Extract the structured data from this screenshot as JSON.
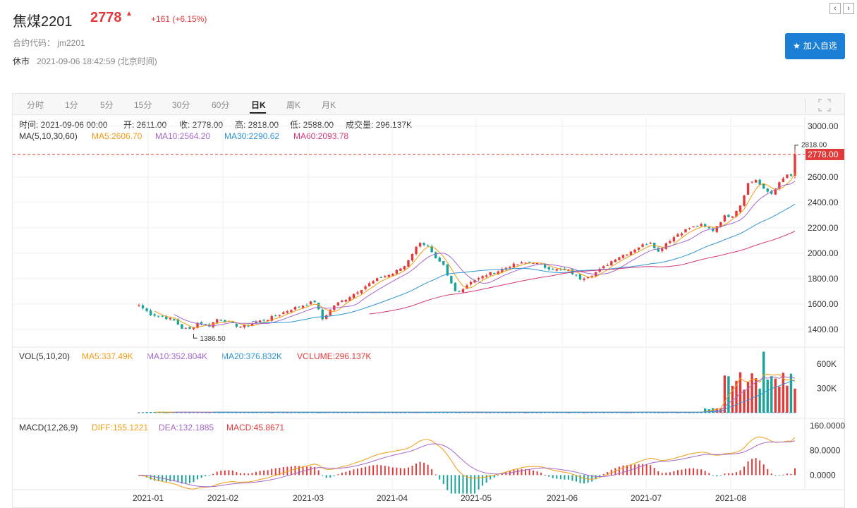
{
  "header": {
    "title": "焦煤2201",
    "price": "2778",
    "change": "+161 (+6.15%)",
    "code_label": "合约代码： jm2201",
    "status": "休市",
    "timestamp": "2021-09-06 18:42:59 (北京时间)",
    "watch_button": "加入自选",
    "up_color": "#e03a3a",
    "down_color": "#1aa39a"
  },
  "tabs": [
    {
      "label": "分时"
    },
    {
      "label": "1分"
    },
    {
      "label": "5分"
    },
    {
      "label": "15分"
    },
    {
      "label": "30分"
    },
    {
      "label": "60分"
    },
    {
      "label": "日K",
      "active": true
    },
    {
      "label": "周K"
    },
    {
      "label": "月K"
    }
  ],
  "info": {
    "time": "时间: 2021-09-06 00:00",
    "open": "开: 2611.00",
    "close": "收: 2778.00",
    "high": "高: 2818.00",
    "low": "低: 2588.00",
    "volume": "成交量: 296.137K"
  },
  "ma_legend": {
    "label": "MA(5,10,30,60)",
    "ma5": "MA5:2606.70",
    "ma10": "MA10:2564.20",
    "ma30": "MA30:2290.62",
    "ma60": "MA60:2093.78"
  },
  "vol_legend": {
    "label": "VOL(5,10,20)",
    "ma5": "MA5:337.49K",
    "ma10": "MA10:352.804K",
    "ma20": "MA20:376.832K",
    "volume": "VOLUME:296.137K"
  },
  "macd_legend": {
    "label": "MACD(12,26,9)",
    "diff": "DIFF:155.1221",
    "dea": "DEA:132.1885",
    "macd": "MACD:45.8671"
  },
  "chart_data": {
    "type": "candlestick",
    "price_axis": {
      "ticks": [
        "1400.00",
        "1600.00",
        "1800.00",
        "2000.00",
        "2200.00",
        "2400.00",
        "2600.00",
        "3000.00"
      ],
      "min": 1260,
      "max": 3050
    },
    "volume_axis": {
      "ticks": [
        "300K",
        "600K"
      ]
    },
    "macd_axis": {
      "ticks": [
        "0.0000",
        "80.0000",
        "160.0000"
      ]
    },
    "x_ticks": [
      "2021-01",
      "2021-02",
      "2021-03",
      "2021-04",
      "2021-05",
      "2021-06",
      "2021-07",
      "2021-08"
    ],
    "high_label": "2818.00",
    "low_label": "1386.50",
    "last_price_label": "2778.00",
    "close_anchors": [
      [
        0,
        1590
      ],
      [
        3,
        1520
      ],
      [
        6,
        1500
      ],
      [
        9,
        1470
      ],
      [
        11,
        1410
      ],
      [
        13,
        1400
      ],
      [
        15,
        1450
      ],
      [
        18,
        1430
      ],
      [
        20,
        1480
      ],
      [
        22,
        1470
      ],
      [
        24,
        1440
      ],
      [
        26,
        1420
      ],
      [
        28,
        1430
      ],
      [
        30,
        1460
      ],
      [
        33,
        1480
      ],
      [
        36,
        1520
      ],
      [
        39,
        1560
      ],
      [
        42,
        1590
      ],
      [
        45,
        1620
      ],
      [
        47,
        1480
      ],
      [
        50,
        1590
      ],
      [
        53,
        1640
      ],
      [
        56,
        1700
      ],
      [
        59,
        1760
      ],
      [
        62,
        1810
      ],
      [
        65,
        1840
      ],
      [
        68,
        1900
      ],
      [
        70,
        2000
      ],
      [
        72,
        2090
      ],
      [
        74,
        2050
      ],
      [
        76,
        1950
      ],
      [
        78,
        1900
      ],
      [
        79,
        1820
      ],
      [
        81,
        1700
      ],
      [
        83,
        1720
      ],
      [
        85,
        1780
      ],
      [
        87,
        1800
      ],
      [
        89,
        1830
      ],
      [
        92,
        1860
      ],
      [
        95,
        1900
      ],
      [
        98,
        1920
      ],
      [
        101,
        1930
      ],
      [
        104,
        1890
      ],
      [
        107,
        1870
      ],
      [
        110,
        1860
      ],
      [
        113,
        1800
      ],
      [
        116,
        1830
      ],
      [
        119,
        1890
      ],
      [
        122,
        1960
      ],
      [
        125,
        2000
      ],
      [
        128,
        2050
      ],
      [
        131,
        2090
      ],
      [
        133,
        2010
      ],
      [
        135,
        2080
      ],
      [
        138,
        2150
      ],
      [
        141,
        2200
      ],
      [
        144,
        2220
      ],
      [
        147,
        2180
      ],
      [
        150,
        2290
      ],
      [
        152,
        2300
      ],
      [
        154,
        2380
      ],
      [
        156,
        2550
      ],
      [
        158,
        2580
      ],
      [
        160,
        2500
      ],
      [
        162,
        2470
      ],
      [
        164,
        2550
      ],
      [
        166,
        2620
      ],
      [
        167,
        2611
      ],
      [
        168,
        2778
      ]
    ]
  }
}
